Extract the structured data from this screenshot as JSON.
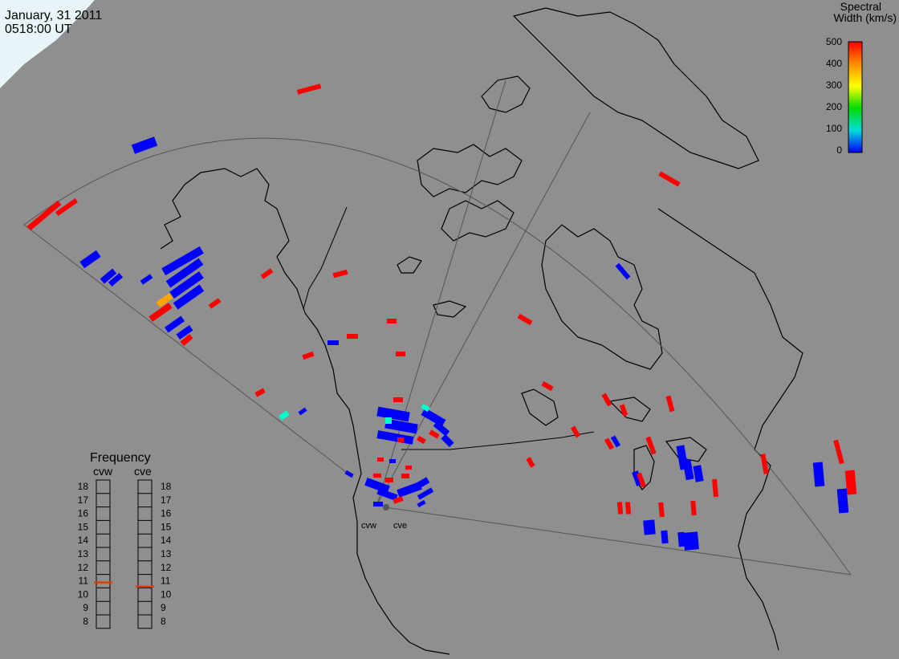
{
  "header": {
    "date": "January, 31 2011",
    "time": "0518:00 UT"
  },
  "legend": {
    "title_line1": "Spectral",
    "title_line2": "Width (km/s)",
    "ticks": [
      "500",
      "400",
      "300",
      "200",
      "100",
      "0"
    ],
    "gradient_colors": [
      "#ff0000",
      "#ff8c00",
      "#ffff00",
      "#00dc00",
      "#00dcdc",
      "#0000ff"
    ]
  },
  "frequency": {
    "title": "Frequency",
    "radars": [
      {
        "name": "cvw",
        "value_mhz": 10.9
      },
      {
        "name": "cve",
        "value_mhz": 10.6
      }
    ],
    "scale": [
      "18",
      "17",
      "16",
      "15",
      "14",
      "13",
      "12",
      "11",
      "10",
      "9",
      "8"
    ],
    "marker_color": "#e03c00"
  },
  "stations": [
    {
      "name": "cvw"
    },
    {
      "name": "cve"
    }
  ],
  "colors": {
    "background": "#8f8f8f",
    "coast": "#000000",
    "fov": "#555555",
    "high_width": "#ff0000",
    "low_width": "#0000ff",
    "mid_width": "#00ffcc",
    "moderate_width": "#ffa500",
    "polar_region": "#e8f4f8"
  }
}
